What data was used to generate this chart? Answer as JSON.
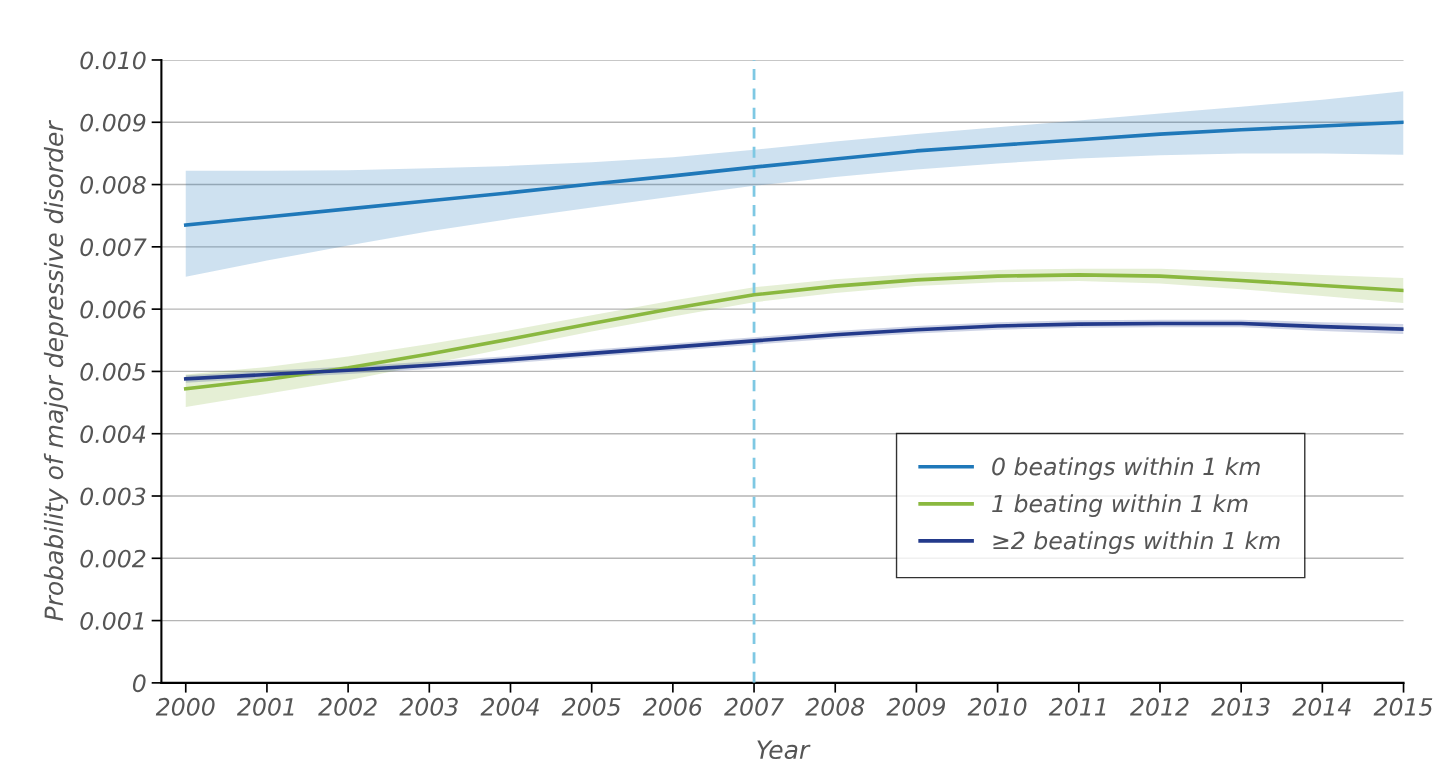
{
  "chart_data": {
    "type": "line",
    "xlabel": "Year",
    "ylabel": "Probability of major depressive disorder",
    "x": [
      2000,
      2001,
      2002,
      2003,
      2004,
      2005,
      2006,
      2007,
      2008,
      2009,
      2010,
      2011,
      2012,
      2013,
      2014,
      2015
    ],
    "series": [
      {
        "name": "0 beatings within 1 km",
        "color": "#1f78b9",
        "values": [
          0.00735,
          0.00748,
          0.00761,
          0.00774,
          0.00787,
          0.00801,
          0.00814,
          0.00828,
          0.00841,
          0.00854,
          0.00863,
          0.00872,
          0.00881,
          0.00888,
          0.00894,
          0.009
        ],
        "lower": [
          0.00652,
          0.00678,
          0.00702,
          0.00725,
          0.00745,
          0.00763,
          0.00781,
          0.00798,
          0.00812,
          0.00824,
          0.00834,
          0.00842,
          0.00847,
          0.0085,
          0.0085,
          0.00848
        ],
        "upper": [
          0.00822,
          0.00822,
          0.00823,
          0.00826,
          0.0083,
          0.00836,
          0.00844,
          0.00856,
          0.00869,
          0.00881,
          0.00892,
          0.00903,
          0.00914,
          0.00925,
          0.00936,
          0.0095
        ]
      },
      {
        "name": "1 beating within 1 km",
        "color": "#8ab83f",
        "values": [
          0.00472,
          0.00487,
          0.00506,
          0.00528,
          0.00552,
          0.00577,
          0.00601,
          0.00623,
          0.00637,
          0.00647,
          0.00653,
          0.00655,
          0.00653,
          0.00646,
          0.00638,
          0.0063
        ],
        "lower": [
          0.00443,
          0.00464,
          0.00486,
          0.00512,
          0.00538,
          0.00564,
          0.00588,
          0.00611,
          0.00626,
          0.00637,
          0.00643,
          0.00645,
          0.00641,
          0.00632,
          0.00621,
          0.0061
        ],
        "upper": [
          0.00495,
          0.00507,
          0.00524,
          0.00544,
          0.00566,
          0.0059,
          0.00614,
          0.00635,
          0.00648,
          0.00657,
          0.00663,
          0.00665,
          0.00665,
          0.0066,
          0.00655,
          0.0065
        ]
      },
      {
        "name": "≥2 beatings within 1 km",
        "color": "#233a8b",
        "values": [
          0.00488,
          0.00495,
          0.00502,
          0.0051,
          0.00519,
          0.00529,
          0.00539,
          0.00549,
          0.00559,
          0.00567,
          0.00573,
          0.00576,
          0.00577,
          0.00577,
          0.00572,
          0.00568
        ],
        "lower": [
          0.00482,
          0.00489,
          0.00496,
          0.00504,
          0.00513,
          0.00523,
          0.00533,
          0.00543,
          0.00553,
          0.00561,
          0.00567,
          0.0057,
          0.00571,
          0.00571,
          0.00565,
          0.0056
        ],
        "upper": [
          0.00494,
          0.00501,
          0.00508,
          0.00516,
          0.00525,
          0.00535,
          0.00545,
          0.00555,
          0.00565,
          0.00573,
          0.00579,
          0.00582,
          0.00583,
          0.00583,
          0.00579,
          0.00576
        ]
      }
    ],
    "xlim": [
      1999.7,
      2015
    ],
    "xticks": [
      2000,
      2001,
      2002,
      2003,
      2004,
      2005,
      2006,
      2007,
      2008,
      2009,
      2010,
      2011,
      2012,
      2013,
      2014,
      2015
    ],
    "ylim": [
      0,
      0.01
    ],
    "yticks": [
      0,
      {
        "value": 0.001,
        "label": "0.001"
      },
      {
        "value": 0.002,
        "label": "0.002"
      },
      {
        "value": 0.003,
        "label": "0.003"
      },
      {
        "value": 0.004,
        "label": "0.004"
      },
      {
        "value": 0.005,
        "label": "0.005"
      },
      {
        "value": 0.006,
        "label": "0.006"
      },
      {
        "value": 0.007,
        "label": "0.007"
      },
      {
        "value": 0.008,
        "label": "0.008"
      },
      {
        "value": 0.009,
        "label": "0.009"
      },
      {
        "value": 0.01,
        "label": "0.010"
      }
    ],
    "ref_lines": [
      {
        "axis": "x",
        "value": 2007,
        "label": null,
        "color": "#7ec8e3",
        "line_style": "dashed"
      }
    ],
    "grid": "y",
    "legend": "lower right",
    "marker": "none",
    "line_style": "solid"
  }
}
